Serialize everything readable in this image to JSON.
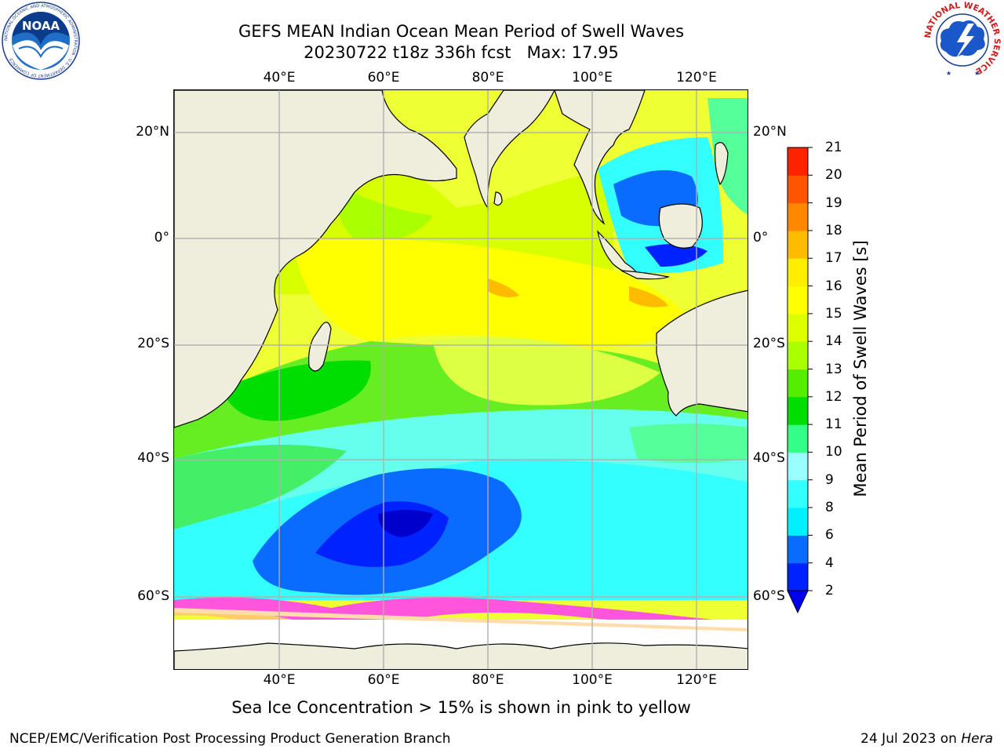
{
  "title_line1": "GEFS MEAN Indian Ocean Mean Period of Swell Waves",
  "title_line2": "20230722 t18z 336h fcst   Max: 17.95",
  "map": {
    "lon_ticks": [
      "40°E",
      "60°E",
      "80°E",
      "100°E",
      "120°E"
    ],
    "lat_ticks": [
      "20°N",
      "0°",
      "20°S",
      "40°S",
      "60°S"
    ],
    "lon_range": [
      20,
      130
    ],
    "lat_range": [
      -70,
      28
    ],
    "land_color": "#efeedd",
    "grid_color": "#b0b0b0"
  },
  "colorbar": {
    "label": "Mean Period of Swell Waves [s]",
    "levels": [
      "2",
      "4",
      "6",
      "8",
      "9",
      "10",
      "11",
      "12",
      "13",
      "14",
      "15",
      "16",
      "17",
      "18",
      "19",
      "20",
      "21"
    ],
    "colors": [
      "#0022ff",
      "#0a6cff",
      "#00f0ff",
      "#33ffff",
      "#99ffff",
      "#33ff88",
      "#00dd00",
      "#55ee00",
      "#aaff00",
      "#ddff00",
      "#ffff00",
      "#ffee00",
      "#ffbb00",
      "#ff8800",
      "#ff5500",
      "#ff2200"
    ],
    "extend": "min"
  },
  "footer_note": "Sea Ice Concentration > 15% is shown in pink to yellow",
  "footer_left": "NCEP/EMC/Verification Post Processing Product Generation Branch",
  "footer_date": "24 Jul 2023 on ",
  "footer_machine": "Hera",
  "logos": {
    "noaa": "NOAA",
    "noaa_ring": "NATIONAL OCEANIC AND ATMOSPHERIC ADMINISTRATION · U.S. DEPARTMENT OF COMMERCE",
    "nws_ring": "NATIONAL WEATHER SERVICE"
  }
}
